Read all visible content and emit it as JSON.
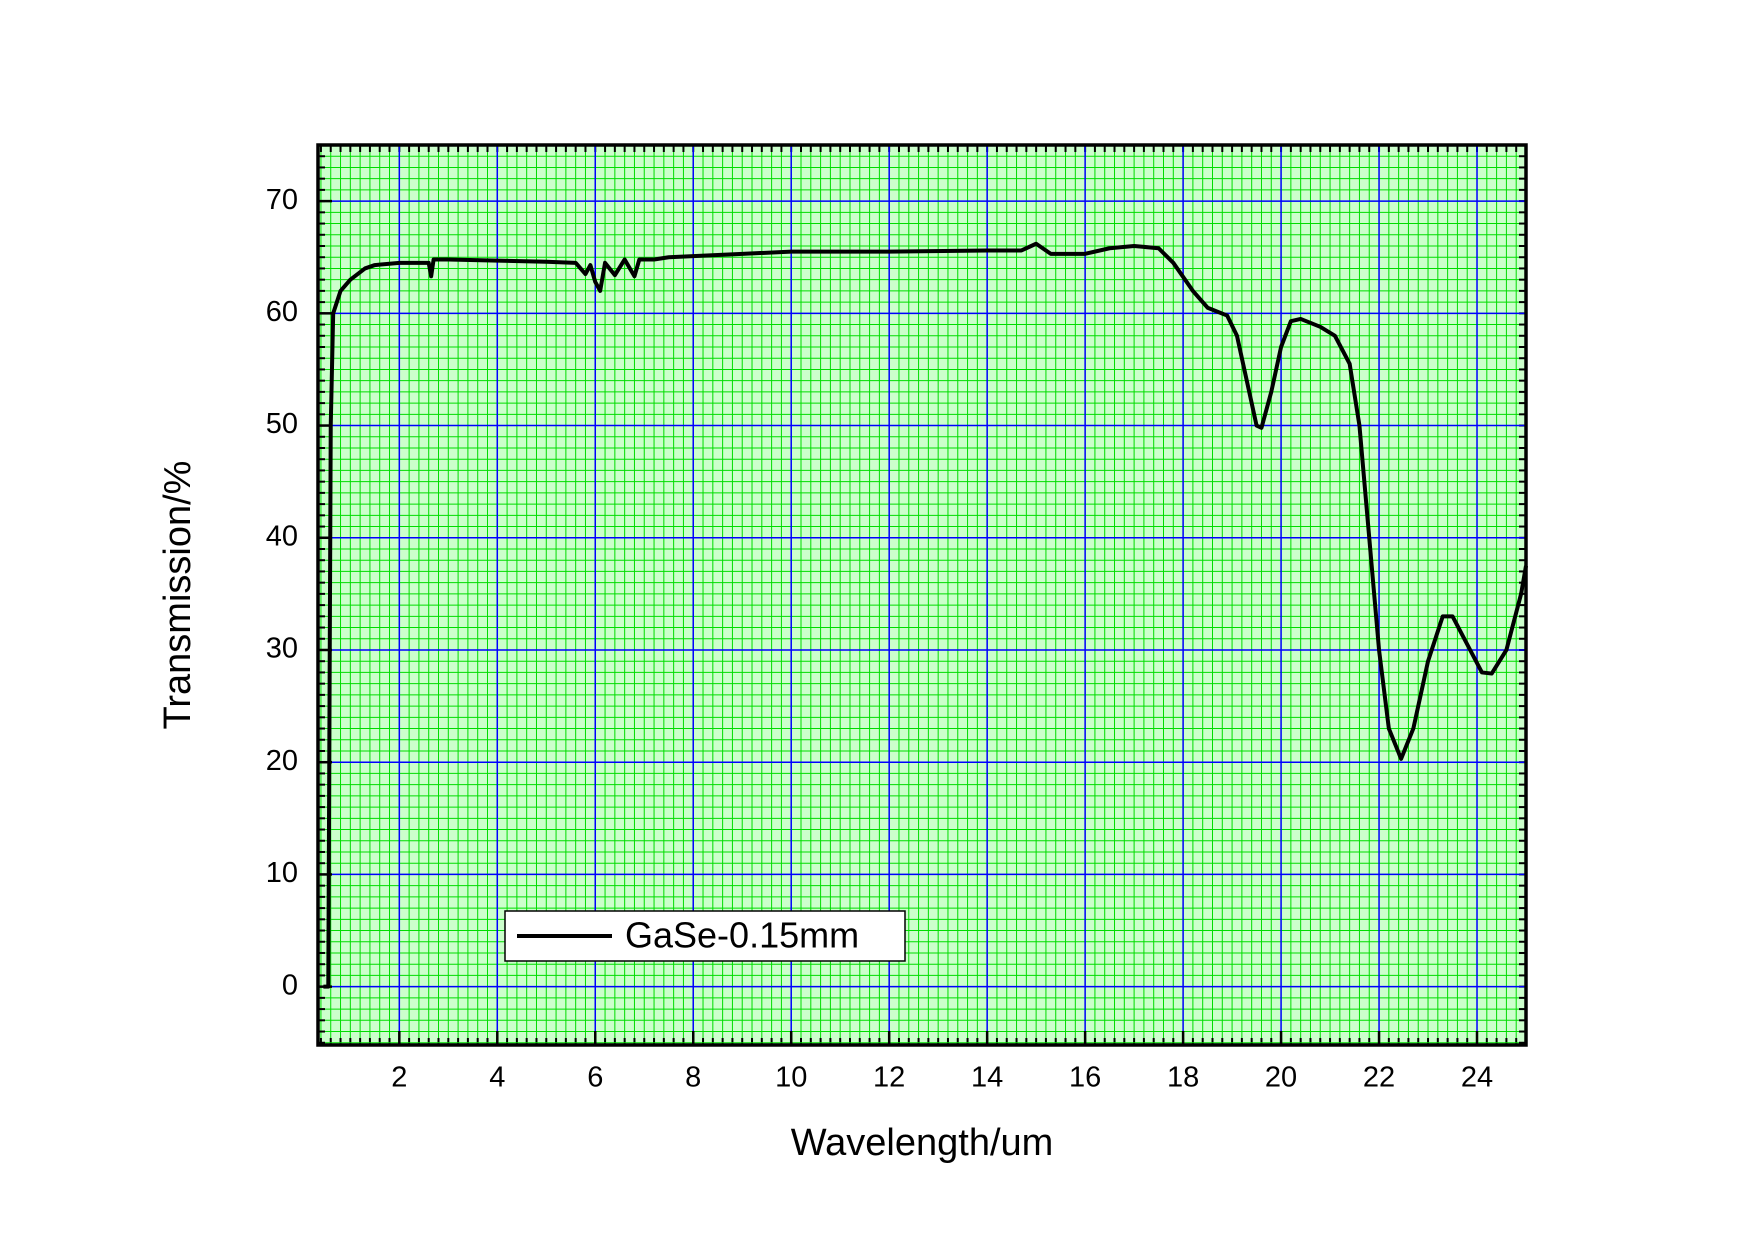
{
  "chart_data": {
    "type": "line",
    "x_label": "Wavelength/um",
    "y_label": "Transmission/%",
    "xlim": [
      0.34,
      25
    ],
    "ylim": [
      -5.2,
      75
    ],
    "xticks": [
      2,
      4,
      6,
      8,
      10,
      12,
      14,
      16,
      18,
      20,
      22,
      24
    ],
    "yticks": [
      0,
      10,
      20,
      30,
      40,
      50,
      60,
      70
    ],
    "grid": true,
    "grid_color": "#0000ff",
    "minor_grid": {
      "x": 0.2,
      "y": 1,
      "color": "#00dd00"
    },
    "background": "#ccffcc",
    "legend": "lower left",
    "series": [
      {
        "name": "GaSe-0.15mm",
        "color": "#000000",
        "x": [
          0.45,
          0.55,
          0.6,
          0.65,
          0.8,
          1.0,
          1.3,
          1.5,
          2,
          2.6,
          2.65,
          2.7,
          3,
          4,
          5,
          5.6,
          5.8,
          5.9,
          6.0,
          6.1,
          6.2,
          6.4,
          6.6,
          6.8,
          6.9,
          7.2,
          7.5,
          8,
          9,
          10,
          12,
          14,
          14.7,
          15,
          15.3,
          16,
          16.5,
          17,
          17.5,
          17.8,
          18.2,
          18.5,
          18.9,
          19.1,
          19.3,
          19.5,
          19.6,
          19.8,
          20.0,
          20.2,
          20.4,
          20.8,
          21.1,
          21.4,
          21.6,
          21.8,
          22.0,
          22.2,
          22.45,
          22.7,
          23,
          23.3,
          23.5,
          23.8,
          24.1,
          24.3,
          24.6,
          24.9,
          25
        ],
        "values": [
          0,
          0,
          50,
          60,
          62,
          63,
          64,
          64.3,
          64.5,
          64.5,
          63.3,
          64.8,
          64.8,
          64.7,
          64.6,
          64.5,
          63.5,
          64.3,
          62.8,
          62,
          64.5,
          63.4,
          64.8,
          63.3,
          64.8,
          64.8,
          65.0,
          65.1,
          65.3,
          65.5,
          65.5,
          65.6,
          65.6,
          66.2,
          65.3,
          65.3,
          65.8,
          66,
          65.8,
          64.5,
          62,
          60.5,
          59.8,
          58,
          54,
          50,
          49.8,
          53,
          57,
          59.3,
          59.5,
          58.8,
          58,
          55.5,
          50,
          40,
          30,
          23,
          20.3,
          23,
          29,
          33,
          33,
          30.5,
          28,
          27.9,
          30,
          35,
          37.5
        ]
      }
    ]
  }
}
